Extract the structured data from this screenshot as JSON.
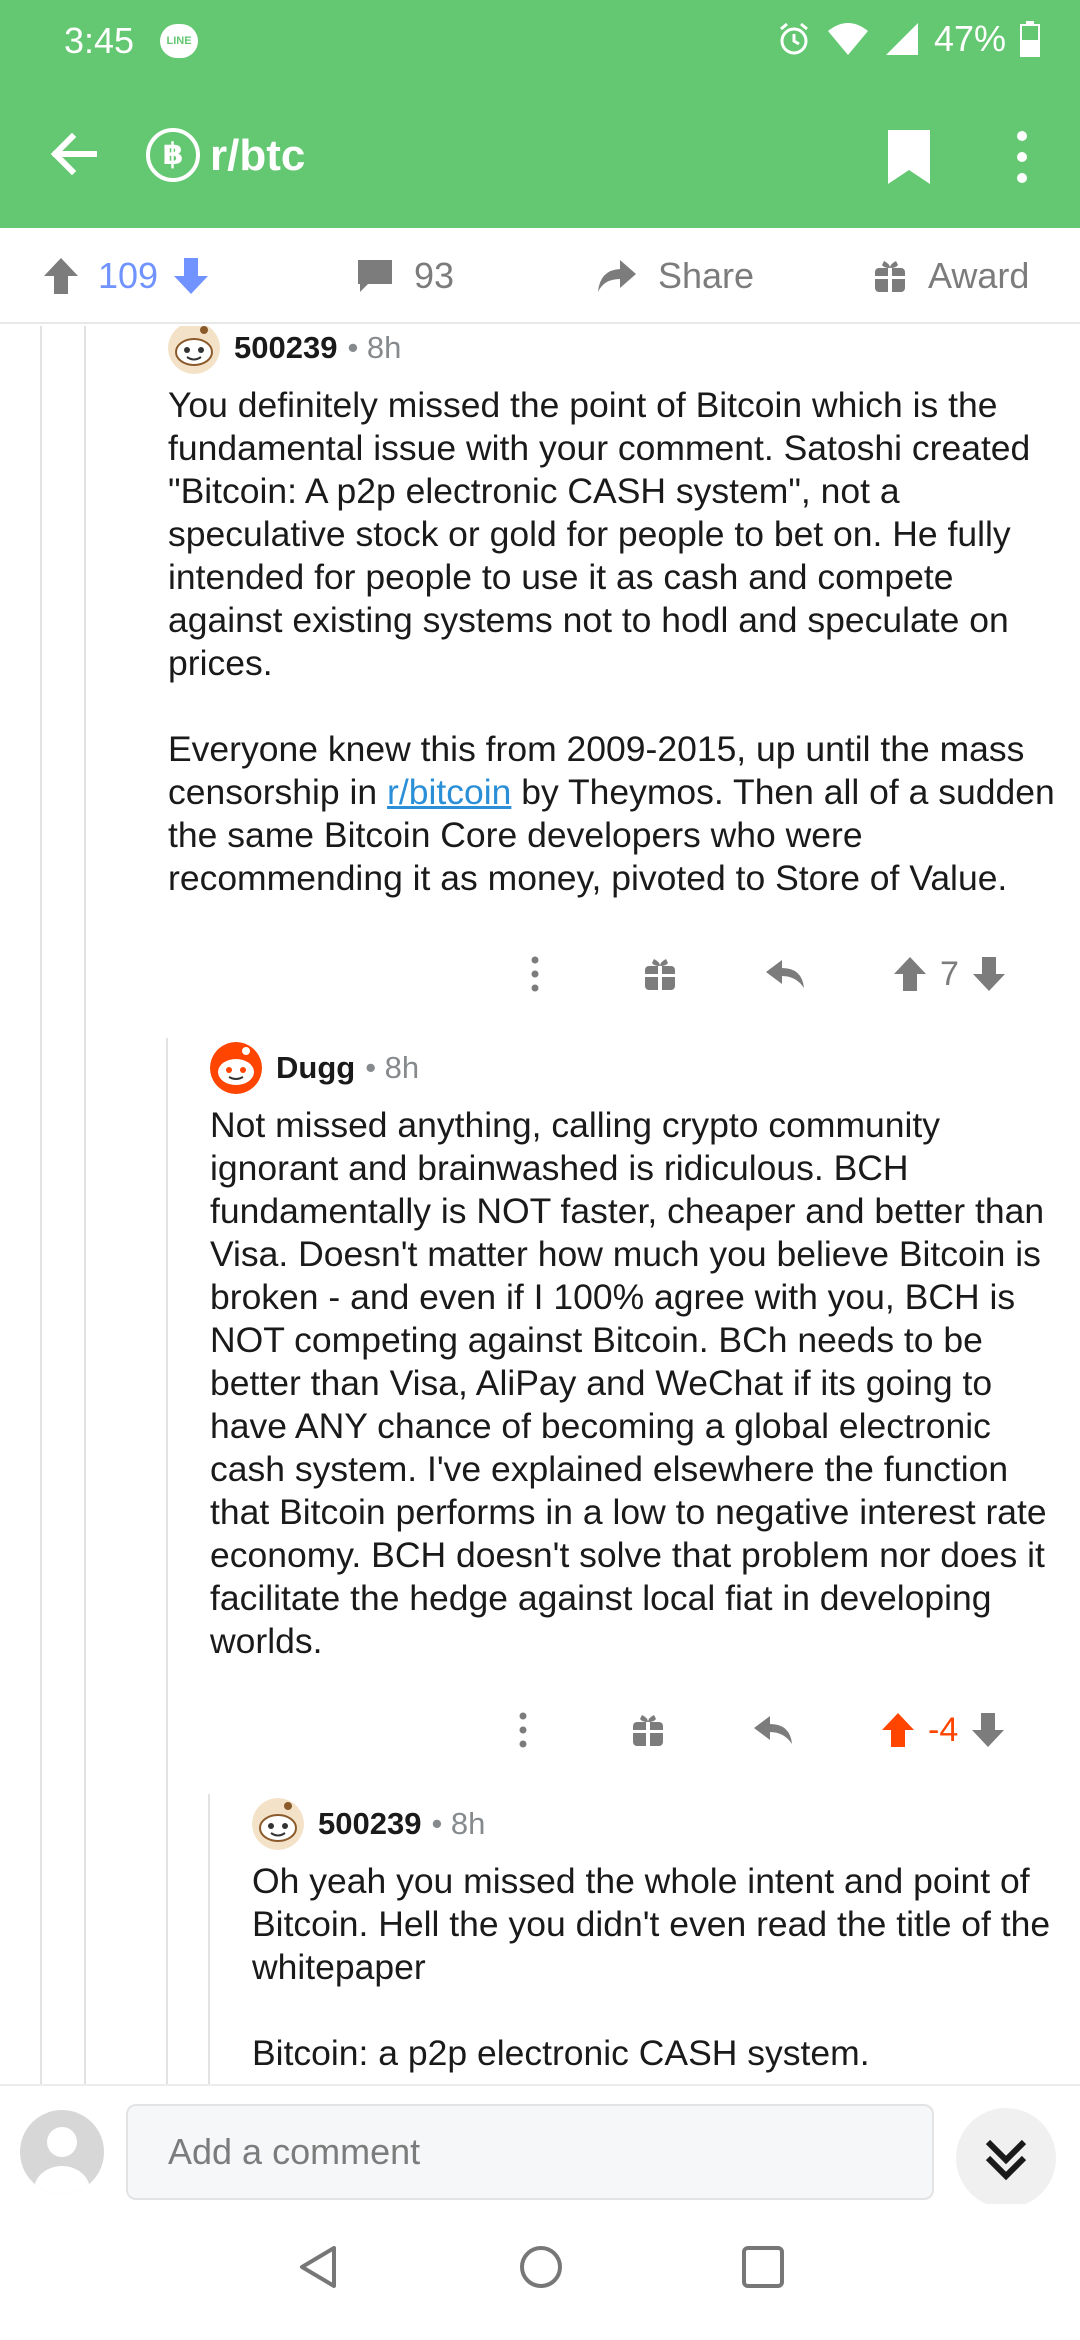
{
  "status_bar": {
    "time": "3:45",
    "line_badge": "LINE",
    "battery": "47%"
  },
  "app_bar": {
    "subreddit": "r/btc",
    "subreddit_icon": "bitcoin-icon"
  },
  "post_actions": {
    "score": "109",
    "comments": "93",
    "share_label": "Share",
    "award_label": "Award"
  },
  "comments": [
    {
      "author": "500239",
      "age": "8h",
      "paragraph1": "You definitely missed the point of Bitcoin which is the fundamental issue with your comment. Satoshi created \"Bitcoin: A p2p electronic CASH system\", not a speculative stock or gold for people to bet on. He fully intended for people to use it as cash and compete against existing systems not to hodl and speculate on prices.",
      "paragraph2_before_link": "Everyone knew this from 2009-2015, up until the mass censorship in ",
      "paragraph2_link": "r/bitcoin",
      "paragraph2_after_link": " by Theymos. Then all of a sudden the same Bitcoin Core developers who were recommending it as money, pivoted to Store of Value.",
      "score": "7"
    },
    {
      "author": "Dugg",
      "age": "8h",
      "paragraph1": "Not missed anything, calling crypto community ignorant and brainwashed is ridiculous. BCH fundamentally is NOT faster, cheaper and better than Visa. Doesn't matter how much you believe Bitcoin is broken - and even if I 100% agree with you, BCH is NOT competing against Bitcoin. BCh needs to be better than Visa, AliPay and WeChat if its going to have ANY chance of becoming a global electronic cash system. I've explained elsewhere the function that Bitcoin performs in a low to negative interest rate economy. BCH doesn't solve that problem nor does it facilitate the hedge against local fiat in developing worlds.",
      "score": "-4"
    },
    {
      "author": "500239",
      "age": "8h",
      "paragraph1": "Oh yeah you missed the whole intent and point of Bitcoin. Hell the you didn't even read the title of the whitepaper",
      "paragraph2": "Bitcoin: a p2p electronic CASH system."
    }
  ],
  "composer": {
    "placeholder": "Add a comment"
  },
  "colors": {
    "header": "#64c771",
    "upvote_active": "#ff4500",
    "upvote_post": "#7193ff",
    "link": "#2a8fd6"
  }
}
